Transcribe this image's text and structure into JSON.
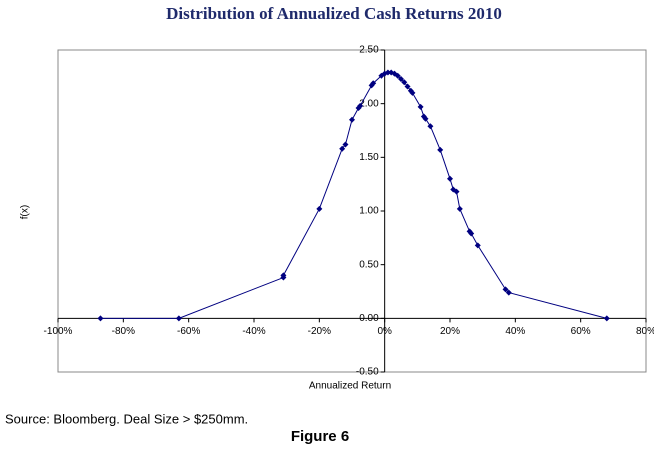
{
  "chart_data": {
    "type": "scatter",
    "title": "Distribution of Annualized Cash Returns 2010",
    "x_label": "Annualized Return",
    "y_label": "f(x)",
    "source": "Source: Bloomberg. Deal Size > $250mm.",
    "caption": "Figure 6",
    "color": "#000080",
    "line": true,
    "x": [
      -87,
      -63,
      -31,
      -31,
      -20,
      -13,
      -12,
      -10,
      -8,
      -7.5,
      -4,
      -3.5,
      -1,
      0,
      1,
      2,
      3,
      4,
      5,
      6,
      7,
      8,
      8.5,
      11,
      12,
      12.5,
      14,
      17,
      20,
      21,
      22,
      23,
      26,
      26.5,
      28.5,
      37,
      38,
      68
    ],
    "values": [
      0.0,
      0.0,
      0.38,
      0.4,
      1.02,
      1.58,
      1.62,
      1.85,
      1.96,
      1.98,
      2.17,
      2.19,
      2.26,
      2.28,
      2.29,
      2.29,
      2.28,
      2.26,
      2.23,
      2.2,
      2.16,
      2.12,
      2.1,
      1.97,
      1.88,
      1.86,
      1.79,
      1.57,
      1.3,
      1.2,
      1.18,
      1.02,
      0.81,
      0.79,
      0.68,
      0.27,
      0.24,
      0.0
    ],
    "xlim": [
      -100,
      80
    ],
    "xticks": [
      {
        "value": -100,
        "label": "-100%"
      },
      {
        "value": -80,
        "label": "-80%"
      },
      {
        "value": -60,
        "label": "-60%"
      },
      {
        "value": -40,
        "label": "-40%"
      },
      {
        "value": -20,
        "label": "-20%"
      },
      {
        "value": 0,
        "label": "0%"
      },
      {
        "value": 20,
        "label": "20%"
      },
      {
        "value": 40,
        "label": "40%"
      },
      {
        "value": 60,
        "label": "60%"
      },
      {
        "value": 80,
        "label": "80%"
      }
    ],
    "ylim": [
      -0.5,
      2.5
    ],
    "yticks": [
      {
        "value": -0.5,
        "label": "-0.50"
      },
      {
        "value": 0,
        "label": "0.00"
      },
      {
        "value": 0.5,
        "label": "0.50"
      },
      {
        "value": 1,
        "label": "1.00"
      },
      {
        "value": 1.5,
        "label": "1.50"
      },
      {
        "value": 2,
        "label": "2.00"
      },
      {
        "value": 2.5,
        "label": "2.50"
      }
    ]
  }
}
